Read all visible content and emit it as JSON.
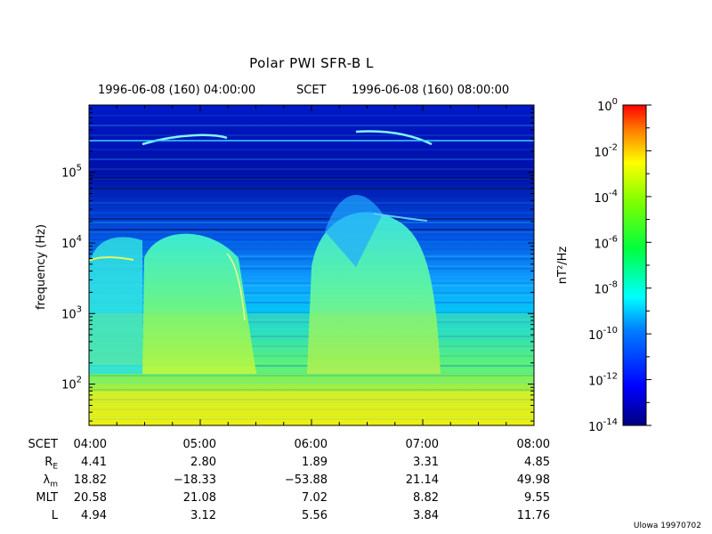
{
  "chart_data": {
    "type": "heatmap",
    "title": "Polar PWI SFR-B L",
    "header_start": "1996-06-08 (160) 04:00:00",
    "header_mid": "SCET",
    "header_end": "1996-06-08 (160) 08:00:00",
    "ylabel": "frequency (Hz)",
    "y_scale": "log",
    "ylim": [
      26,
      900000
    ],
    "y_ticks": [
      {
        "value": 100,
        "base": "10",
        "exp": "2"
      },
      {
        "value": 1000,
        "base": "10",
        "exp": "3"
      },
      {
        "value": 10000,
        "base": "10",
        "exp": "4"
      },
      {
        "value": 100000,
        "base": "10",
        "exp": "5"
      }
    ],
    "xlim": [
      "04:00",
      "08:00"
    ],
    "x_ticks": [
      "04:00",
      "05:00",
      "06:00",
      "07:00",
      "08:00"
    ],
    "colorbar": {
      "label": "nT²/Hz",
      "scale": "log",
      "range": [
        1e-14,
        1
      ],
      "ticks": [
        {
          "base": "10",
          "exp": "0"
        },
        {
          "base": "10",
          "exp": "-2"
        },
        {
          "base": "10",
          "exp": "-4"
        },
        {
          "base": "10",
          "exp": "-6"
        },
        {
          "base": "10",
          "exp": "-8"
        },
        {
          "base": "10",
          "exp": "-10"
        },
        {
          "base": "10",
          "exp": "-12"
        },
        {
          "base": "10",
          "exp": "-14"
        }
      ]
    },
    "ephemeris": {
      "label_scet": "SCET",
      "label_re": "R",
      "label_re_sub": "E",
      "label_lm": "λ",
      "label_lm_sub": "m",
      "label_mlt": "MLT",
      "label_l": "L",
      "times": [
        "04:00",
        "05:00",
        "06:00",
        "07:00",
        "08:00"
      ],
      "RE": [
        "4.41",
        "2.80",
        "1.89",
        "3.31",
        "4.85"
      ],
      "lambda_m": [
        "18.82",
        "−18.33",
        "−53.88",
        "21.14",
        "49.98"
      ],
      "MLT": [
        "20.58",
        "21.08",
        "7.02",
        "8.82",
        "9.55"
      ],
      "L": [
        "4.94",
        "3.12",
        "5.56",
        "3.84",
        "11.76"
      ]
    }
  },
  "credit": "Ulowa 19970702"
}
